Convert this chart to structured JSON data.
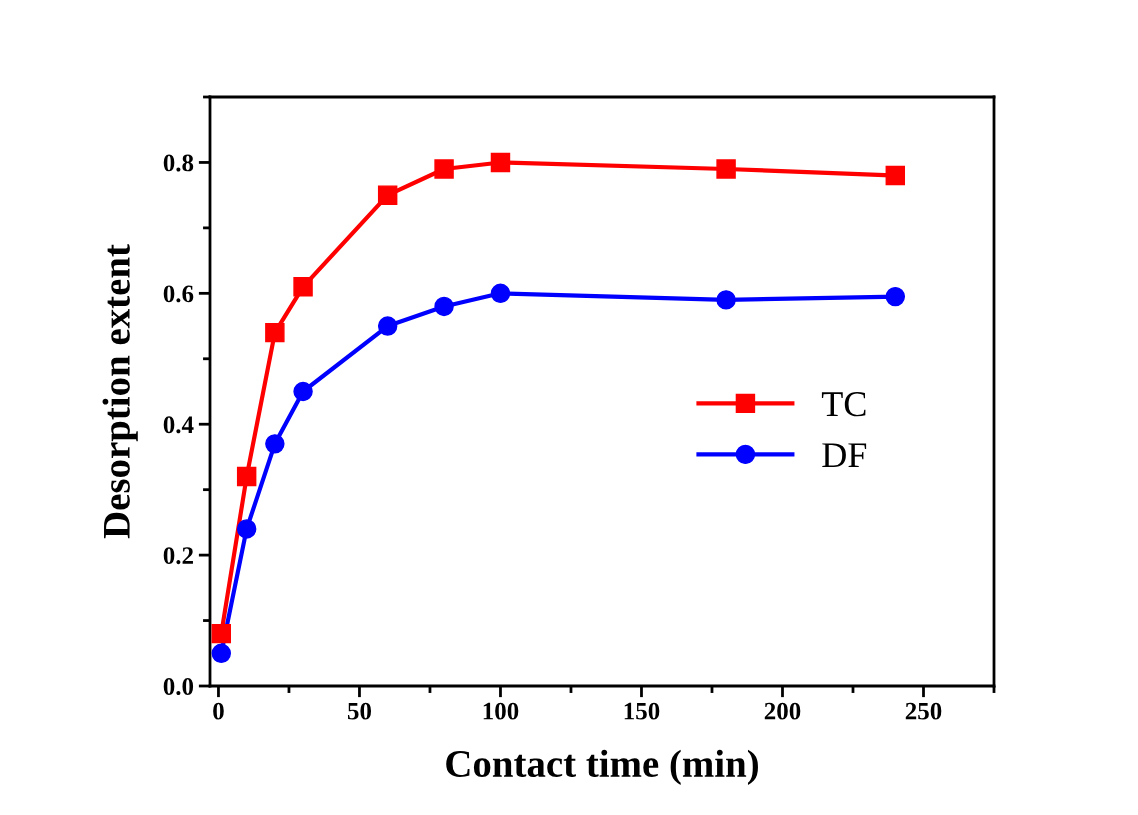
{
  "chart_data": {
    "type": "line",
    "xlabel": "Contact time (min)",
    "ylabel": "Desorption extent",
    "x": [
      1,
      10,
      20,
      30,
      60,
      80,
      100,
      180,
      240
    ],
    "series": [
      {
        "name": "TC",
        "color": "#ff0000",
        "marker": "square",
        "values": [
          0.08,
          0.32,
          0.54,
          0.61,
          0.75,
          0.79,
          0.8,
          0.79,
          0.78
        ]
      },
      {
        "name": "DF",
        "color": "#0000ff",
        "marker": "circle",
        "values": [
          0.05,
          0.24,
          0.37,
          0.45,
          0.55,
          0.58,
          0.6,
          0.59,
          0.595
        ]
      }
    ],
    "xlim": [
      -3,
      275
    ],
    "xticks": [
      0,
      50,
      100,
      150,
      200,
      250
    ],
    "ylim": [
      0,
      0.9
    ],
    "yticks": [
      {
        "value": 0,
        "label": "0.0"
      },
      {
        "value": 0.2,
        "label": "0.2"
      },
      {
        "value": 0.4,
        "label": "0.4"
      },
      {
        "value": 0.6,
        "label": "0.6"
      },
      {
        "value": 0.8,
        "label": "0.8"
      }
    ],
    "line_style": "solid",
    "grid": false,
    "legend": "right"
  }
}
